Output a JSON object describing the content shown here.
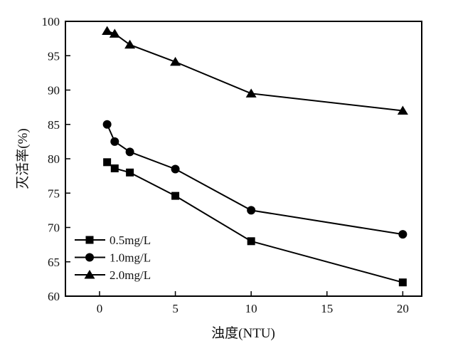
{
  "chart_data": {
    "type": "line",
    "title": "",
    "xlabel": "浊度(NTU)",
    "ylabel": "灭活率(%)",
    "xlim": [
      -2.25,
      21.25
    ],
    "ylim": [
      60,
      100
    ],
    "xticks": [
      0,
      5,
      10,
      15,
      20
    ],
    "yticks": [
      60,
      65,
      70,
      75,
      80,
      85,
      90,
      95,
      100
    ],
    "grid": false,
    "legend_position": "bottom-left",
    "x": [
      0.5,
      1,
      2,
      5,
      10,
      20
    ],
    "series": [
      {
        "name": "0.5mg/L",
        "marker": "square",
        "values": [
          79.5,
          78.6,
          78.0,
          74.6,
          68.0,
          62.0
        ]
      },
      {
        "name": "1.0mg/L",
        "marker": "circle",
        "values": [
          85.0,
          82.5,
          81.0,
          78.5,
          72.5,
          69.0
        ]
      },
      {
        "name": "2.0mg/L",
        "marker": "triangle",
        "values": [
          98.6,
          98.2,
          96.6,
          94.1,
          89.5,
          87.0
        ]
      }
    ],
    "colors": {
      "line": "#000000"
    }
  }
}
